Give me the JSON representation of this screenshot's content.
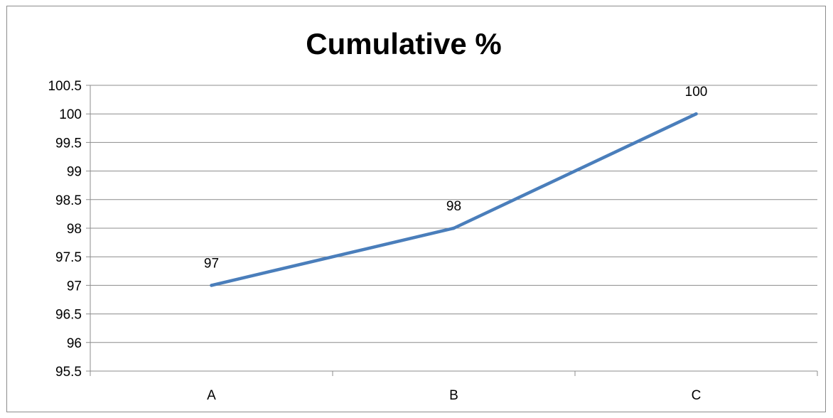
{
  "chart_data": {
    "type": "line",
    "title": "Cumulative %",
    "categories": [
      "A",
      "B",
      "C"
    ],
    "series": [
      {
        "values": [
          97,
          98,
          100
        ]
      }
    ],
    "data_labels": [
      "97",
      "98",
      "100"
    ],
    "ylim": [
      95.5,
      100.5
    ],
    "ytick_step": 0.5,
    "ytick_labels": [
      "95.5",
      "96",
      "96.5",
      "97",
      "97.5",
      "98",
      "98.5",
      "99",
      "99.5",
      "100",
      "100.5"
    ],
    "grid": true,
    "legend": "none",
    "colors": {
      "line": "#4a7ebb",
      "grid": "#8c8c8c",
      "axis": "#8c8c8c"
    }
  }
}
